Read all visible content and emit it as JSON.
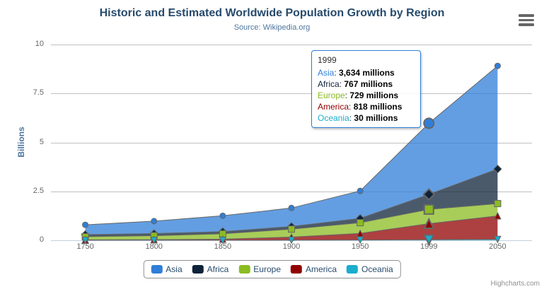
{
  "chart_data": {
    "type": "area",
    "stacking": "normal",
    "title": "Historic and Estimated Worldwide Population Growth by Region",
    "subtitle": "Source: Wikipedia.org",
    "ylabel": "Billions",
    "xlabel": "",
    "unit": "millions",
    "categories": [
      "1750",
      "1800",
      "1850",
      "1900",
      "1950",
      "1999",
      "2050"
    ],
    "yaxis_ticks": [
      "0",
      "2.5",
      "5",
      "7.5",
      "10"
    ],
    "ylim": [
      0,
      10
    ],
    "grid": true,
    "legend_position": "bottom",
    "hover_index": 5,
    "series": [
      {
        "name": "Asia",
        "color": "#2f7ed8",
        "marker": "circle",
        "values_millions": [
          502,
          635,
          809,
          947,
          1402,
          3634,
          5268
        ]
      },
      {
        "name": "Africa",
        "color": "#0d233a",
        "marker": "diamond",
        "values_millions": [
          106,
          107,
          111,
          133,
          221,
          767,
          1766
        ]
      },
      {
        "name": "Europe",
        "color": "#8bbc21",
        "marker": "square",
        "values_millions": [
          163,
          203,
          276,
          408,
          547,
          729,
          628
        ]
      },
      {
        "name": "America",
        "color": "#910000",
        "marker": "triangle",
        "values_millions": [
          18,
          31,
          54,
          156,
          339,
          818,
          1201
        ]
      },
      {
        "name": "Oceania",
        "color": "#1aadce",
        "marker": "triangle-down",
        "values_millions": [
          2,
          2,
          2,
          6,
          13,
          30,
          46
        ]
      }
    ]
  },
  "tooltip": {
    "header": "1999",
    "border_color": "#2f7ed8",
    "rows": [
      {
        "name": "Asia",
        "sep": ":",
        "value": "3,634 millions"
      },
      {
        "name": "Africa",
        "sep": ":",
        "value": "767 millions"
      },
      {
        "name": "Europe",
        "sep": ":",
        "value": "729 millions"
      },
      {
        "name": "America",
        "sep": ":",
        "value": "818 millions"
      },
      {
        "name": "Oceania",
        "sep": ":",
        "value": "30 millions"
      }
    ]
  },
  "legend": {
    "items": [
      {
        "label": "Asia",
        "color": "#2f7ed8"
      },
      {
        "label": "Africa",
        "color": "#0d233a"
      },
      {
        "label": "Europe",
        "color": "#8bbc21"
      },
      {
        "label": "America",
        "color": "#910000"
      },
      {
        "label": "Oceania",
        "color": "#1aadce"
      }
    ]
  },
  "credits": {
    "text": "Highcharts.com"
  },
  "icons": {
    "context_menu": "hamburger-menu-icon"
  },
  "colors": {
    "title": "#274b6d",
    "subtitle": "#4d759e",
    "axis_label": "#666666",
    "gridline": "#c0c0c0",
    "axis_line": "#c0d0e0",
    "marker_stroke": "#666666",
    "legend_border": "#909090",
    "credits_text": "#909090"
  }
}
